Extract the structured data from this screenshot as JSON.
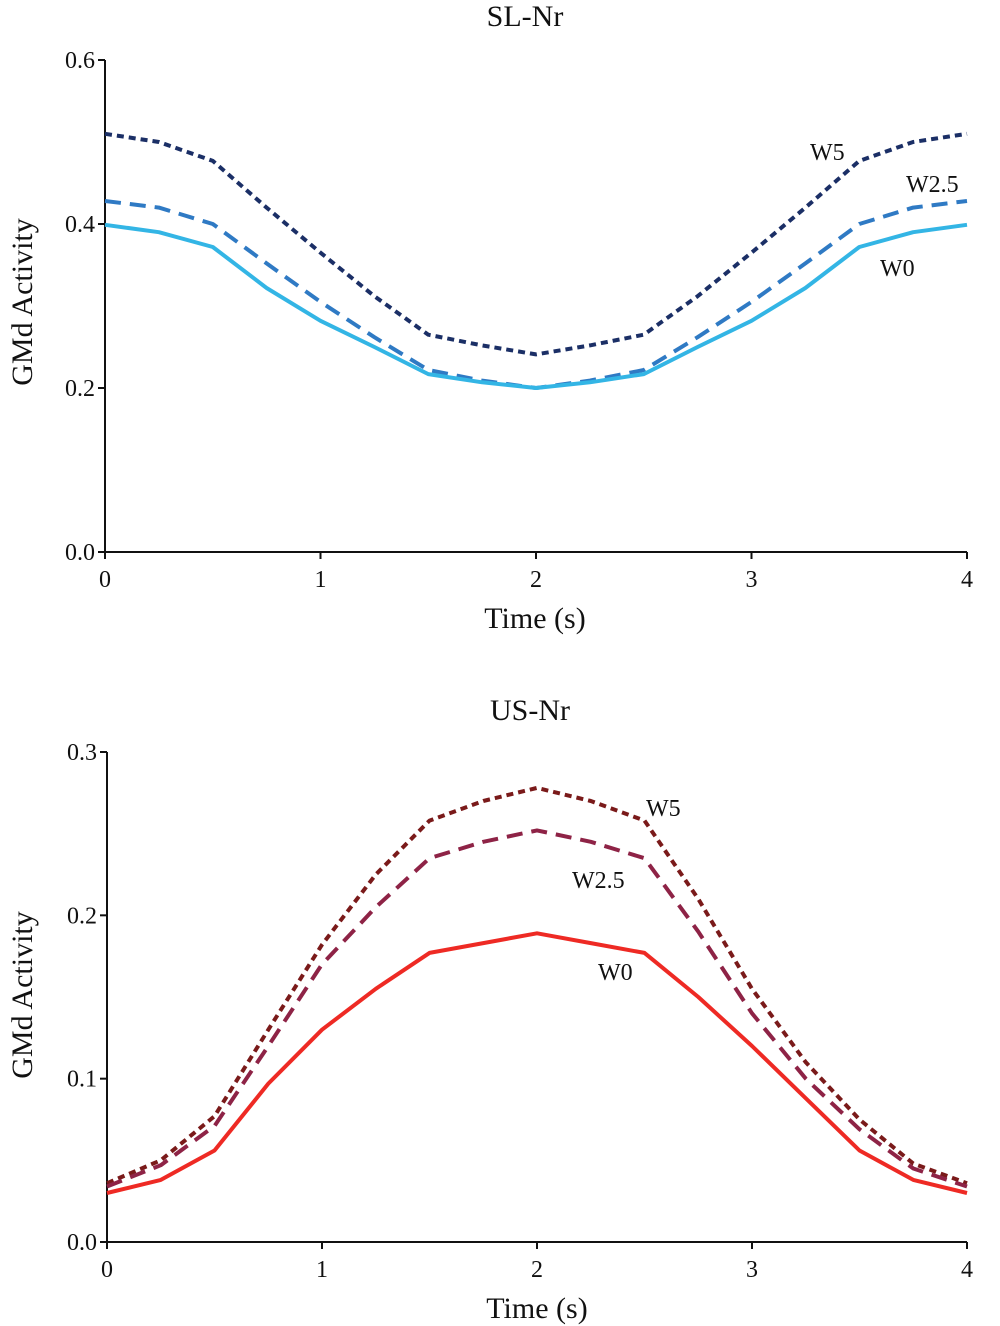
{
  "chart_data": [
    {
      "type": "line",
      "title": "SL-Nr",
      "xlabel": "Time (s)",
      "ylabel": "GMd Activity",
      "xlim": [
        0,
        4
      ],
      "ylim": [
        0,
        0.6
      ],
      "xticks": [
        "0",
        "1",
        "2",
        "3",
        "4"
      ],
      "yticks": [
        "0.0",
        "0.2",
        "0.4",
        "0.6"
      ],
      "x": [
        0,
        0.25,
        0.5,
        0.75,
        1,
        1.25,
        1.5,
        1.75,
        2,
        2.25,
        2.5,
        2.75,
        3,
        3.25,
        3.5,
        3.75,
        4
      ],
      "series": [
        {
          "name": "W5",
          "style": "dotted",
          "color": "#1b2f66",
          "values": [
            0.51,
            0.5,
            0.477,
            0.42,
            0.365,
            0.312,
            0.265,
            0.252,
            0.241,
            0.252,
            0.265,
            0.312,
            0.365,
            0.42,
            0.477,
            0.5,
            0.51
          ]
        },
        {
          "name": "W2.5",
          "style": "dashed",
          "color": "#2f7ac4",
          "values": [
            0.428,
            0.42,
            0.4,
            0.352,
            0.305,
            0.262,
            0.222,
            0.209,
            0.2,
            0.209,
            0.222,
            0.262,
            0.305,
            0.352,
            0.4,
            0.42,
            0.428
          ]
        },
        {
          "name": "W0",
          "style": "solid",
          "color": "#33b5e5",
          "values": [
            0.399,
            0.39,
            0.372,
            0.322,
            0.282,
            0.25,
            0.217,
            0.207,
            0.2,
            0.207,
            0.217,
            0.25,
            0.282,
            0.322,
            0.372,
            0.39,
            0.399
          ]
        }
      ]
    },
    {
      "type": "line",
      "title": "US-Nr",
      "xlabel": "Time (s)",
      "ylabel": "GMd Activity",
      "xlim": [
        0,
        4
      ],
      "ylim": [
        0,
        0.3
      ],
      "xticks": [
        "0",
        "1",
        "2",
        "3",
        "4"
      ],
      "yticks": [
        "0.0",
        "0.1",
        "0.2",
        "0.3"
      ],
      "x": [
        0,
        0.25,
        0.5,
        0.75,
        1,
        1.25,
        1.5,
        1.75,
        2,
        2.25,
        2.5,
        2.75,
        3,
        3.25,
        3.5,
        3.75,
        4
      ],
      "series": [
        {
          "name": "W5",
          "style": "dotted",
          "color": "#7a1a1a",
          "values": [
            0.036,
            0.05,
            0.077,
            0.13,
            0.182,
            0.225,
            0.258,
            0.27,
            0.278,
            0.27,
            0.258,
            0.21,
            0.155,
            0.11,
            0.075,
            0.048,
            0.036
          ]
        },
        {
          "name": "W2.5",
          "style": "dashed",
          "color": "#8e2346",
          "values": [
            0.034,
            0.047,
            0.071,
            0.12,
            0.17,
            0.205,
            0.235,
            0.245,
            0.252,
            0.245,
            0.235,
            0.19,
            0.14,
            0.1,
            0.069,
            0.045,
            0.034
          ]
        },
        {
          "name": "W0",
          "style": "solid",
          "color": "#ee2a24",
          "values": [
            0.03,
            0.038,
            0.056,
            0.097,
            0.13,
            0.155,
            0.177,
            0.183,
            0.189,
            0.183,
            0.177,
            0.15,
            0.12,
            0.088,
            0.056,
            0.038,
            0.03
          ]
        }
      ]
    }
  ]
}
